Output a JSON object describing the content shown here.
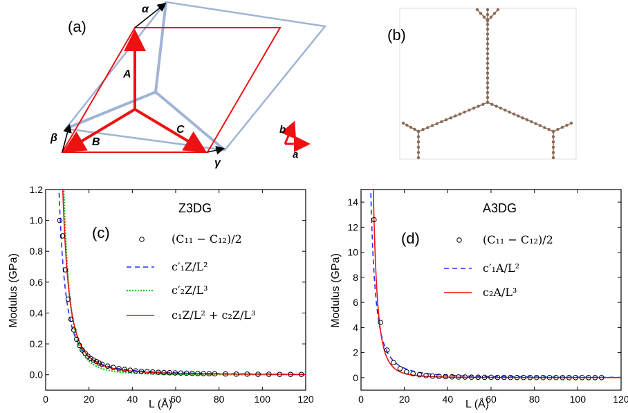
{
  "panel_labels": {
    "a": "(a)",
    "b": "(b)",
    "c": "(c)",
    "d": "(d)"
  },
  "schematic": {
    "vector_labels": {
      "A": "A",
      "B": "B",
      "C": "C"
    },
    "angle_labels": {
      "alpha": "α",
      "beta": "β",
      "gamma": "γ"
    },
    "axis_labels": {
      "a": "a",
      "b": "b"
    },
    "colors": {
      "red": "#ee1111",
      "blue": "#9fb4d6",
      "black": "#000000",
      "atom": "#8a6a55"
    }
  },
  "chart_data": [
    {
      "type": "line",
      "panel": "c",
      "title": "Z3DG",
      "xlabel": "L (Å)",
      "ylabel": "Modulus (GPa)",
      "xlim": [
        0,
        120
      ],
      "ylim": [
        -0.1,
        1.2
      ],
      "xticks": [
        0,
        20,
        40,
        60,
        80,
        100,
        120
      ],
      "yticks": [
        0.0,
        0.2,
        0.4,
        0.6,
        0.8,
        1.0,
        1.2
      ],
      "xtick_labels": [
        "0",
        "20",
        "40",
        "60",
        "80",
        "100",
        "120"
      ],
      "ytick_labels": [
        "0.0",
        "0.2",
        "0.4",
        "0.6",
        "0.8",
        "1.0",
        "1.2"
      ],
      "grid": false,
      "legend_position": "top-right",
      "series": [
        {
          "name": "(C₁₁ − C₁₂)/2",
          "kind": "markers",
          "color": "#000000",
          "x": [
            6.5,
            7.8,
            9.1,
            10.4,
            11.7,
            13,
            14.3,
            15.6,
            16.9,
            18.2,
            19.5,
            20.8,
            22.1,
            23.4,
            24.7,
            26,
            28.6,
            31.2,
            33.8,
            36.4,
            39,
            41.6,
            44.2,
            46.8,
            49.4,
            52,
            54.6,
            57.2,
            59.8,
            62.4,
            65,
            67.6,
            70.2,
            72.8,
            75.4,
            78,
            83,
            88,
            93,
            98,
            103,
            108,
            113,
            118
          ],
          "y": [
            1.0,
            0.9,
            0.68,
            0.49,
            0.36,
            0.29,
            0.23,
            0.19,
            0.16,
            0.14,
            0.12,
            0.105,
            0.095,
            0.085,
            0.075,
            0.068,
            0.056,
            0.047,
            0.04,
            0.034,
            0.029,
            0.025,
            0.022,
            0.02,
            0.018,
            0.016,
            0.014,
            0.013,
            0.012,
            0.011,
            0.01,
            0.009,
            0.008,
            0.0075,
            0.007,
            0.006,
            0.005,
            0.004,
            0.004,
            0.003,
            0.003,
            0.002,
            0.002,
            0.002
          ]
        },
        {
          "name": "c′₁Z/L²",
          "kind": "line",
          "dash": "dashed",
          "color": "#1f2fff",
          "coef": 45.6,
          "power": 2
        },
        {
          "name": "c′₂Z/L³",
          "kind": "line",
          "dash": "dotted",
          "color": "#00cc00",
          "coef": 700,
          "power": 3
        },
        {
          "name": "c₁Z/L² + c₂Z/L³",
          "kind": "line",
          "dash": "solid",
          "color": "#ee1111",
          "coef": 28,
          "power": 2,
          "coef2": 370,
          "power2": 3
        }
      ]
    },
    {
      "type": "line",
      "panel": "d",
      "title": "A3DG",
      "xlabel": "L (Å)",
      "ylabel": "Modulus (GPa)",
      "xlim": [
        0,
        120
      ],
      "ylim": [
        -1,
        15
      ],
      "xticks": [
        0,
        20,
        40,
        60,
        80,
        100,
        120
      ],
      "yticks": [
        0,
        2,
        4,
        6,
        8,
        10,
        12,
        14
      ],
      "xtick_labels": [
        "0",
        "20",
        "40",
        "60",
        "80",
        "100",
        "120"
      ],
      "ytick_labels": [
        "0",
        "2",
        "4",
        "6",
        "8",
        "10",
        "12",
        "14"
      ],
      "grid": false,
      "legend_position": "top-right",
      "series": [
        {
          "name": "(C₁₁ − C₁₂)/2",
          "kind": "markers",
          "color": "#000000",
          "x": [
            6,
            9,
            12,
            15,
            18,
            21,
            24,
            27,
            30,
            33,
            36,
            39,
            42,
            45,
            48,
            51,
            54,
            57,
            60,
            63,
            66,
            69,
            72,
            75,
            78,
            81,
            84,
            87,
            90,
            93,
            96,
            99,
            102,
            105,
            108,
            111
          ],
          "y": [
            12.6,
            4.4,
            2.2,
            1.2,
            0.72,
            0.46,
            0.32,
            0.23,
            0.17,
            0.13,
            0.1,
            0.08,
            0.065,
            0.053,
            0.044,
            0.037,
            0.031,
            0.027,
            0.023,
            0.02,
            0.017,
            0.015,
            0.013,
            0.012,
            0.01,
            0.009,
            0.008,
            0.0075,
            0.007,
            0.0065,
            0.006,
            0.0055,
            0.005,
            0.0045,
            0.004,
            0.004
          ]
        },
        {
          "name": "c′₁A/L²",
          "kind": "line",
          "dash": "dashed",
          "color": "#1f2fff",
          "coef": 300,
          "power": 2
        },
        {
          "name": "c₂A/L³",
          "kind": "line",
          "dash": "solid",
          "color": "#ee1111",
          "coef": 2720,
          "power": 3
        }
      ]
    }
  ]
}
